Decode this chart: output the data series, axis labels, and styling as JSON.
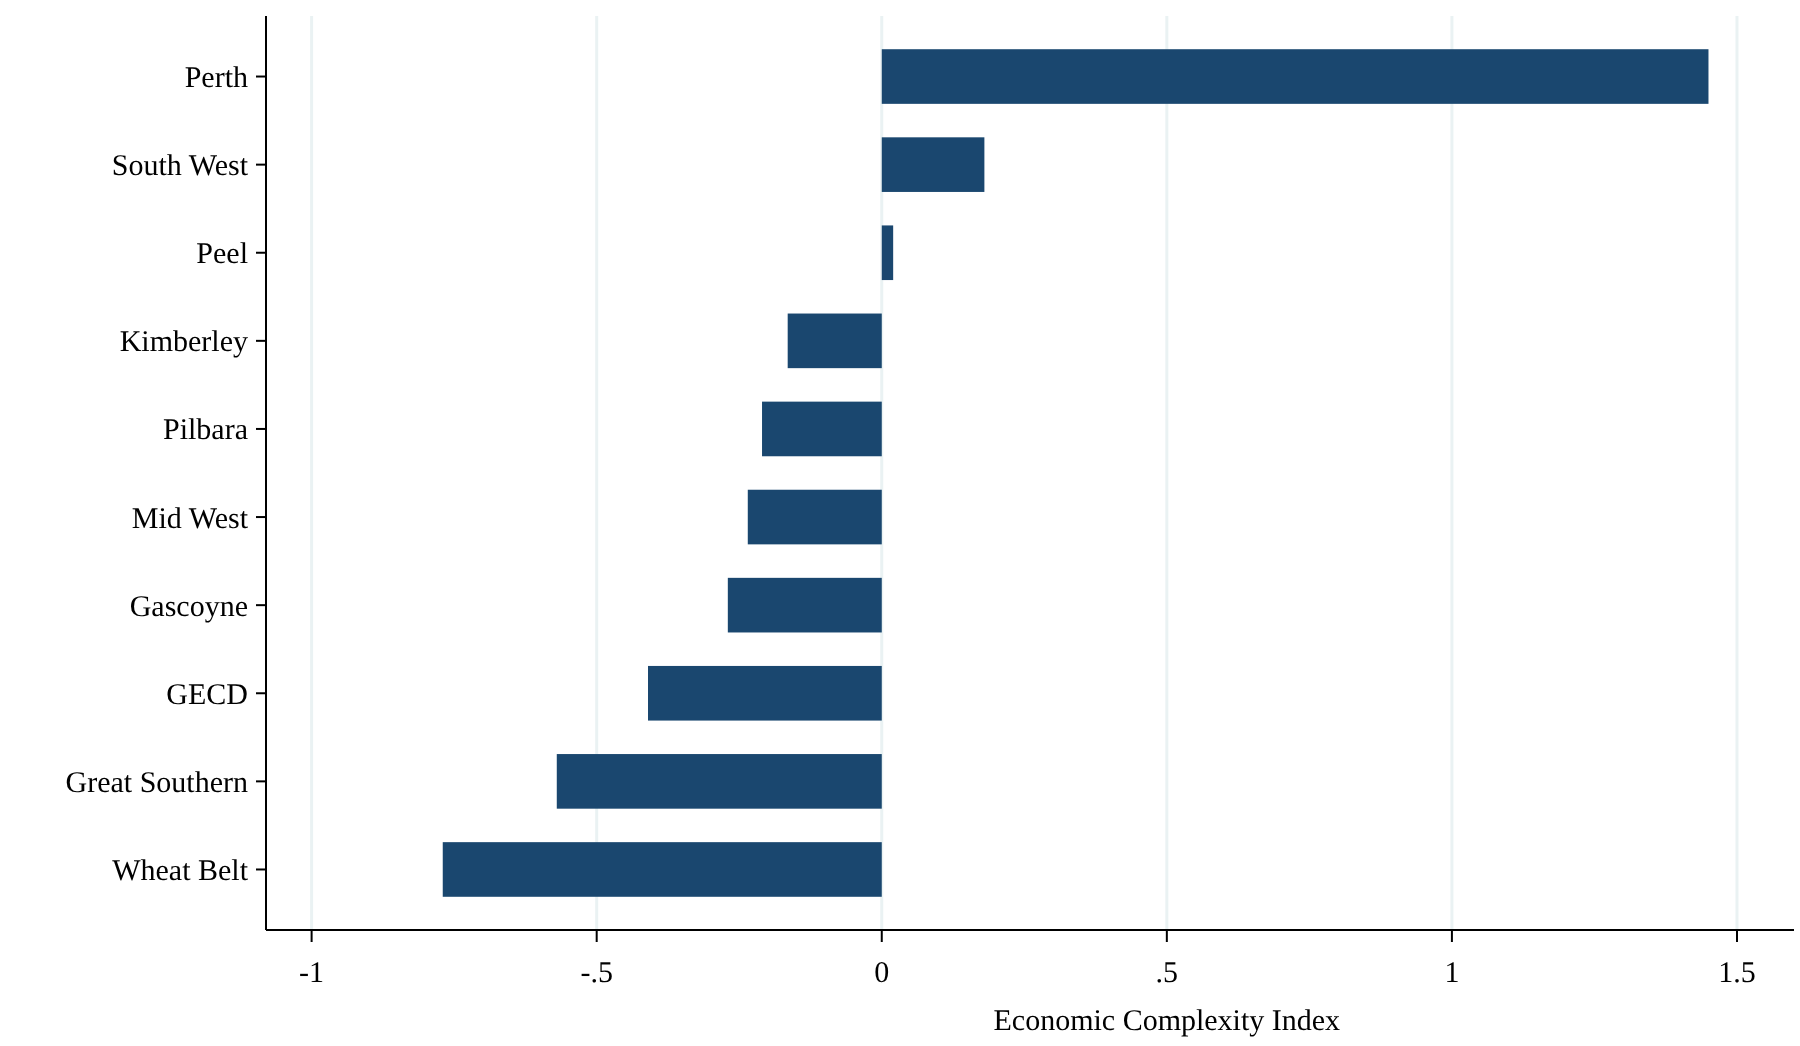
{
  "chart_data": {
    "type": "bar",
    "orientation": "horizontal",
    "xlabel": "Economic Complexity Index",
    "categories": [
      "Perth",
      "South West",
      "Peel",
      "Kimberley",
      "Pilbara",
      "Mid West",
      "Gascoyne",
      "GECD",
      "Great Southern",
      "Wheat Belt"
    ],
    "values": [
      1.45,
      0.18,
      0.02,
      -0.165,
      -0.21,
      -0.235,
      -0.27,
      -0.41,
      -0.57,
      -0.77
    ],
    "color": "#1a476f",
    "xlim": [
      -1.08,
      1.6
    ],
    "xticks": [
      {
        "value": -1,
        "label": "-1"
      },
      {
        "value": -0.5,
        "label": "-.5"
      },
      0,
      {
        "value": 0.5,
        "label": ".5"
      },
      1,
      1.5
    ],
    "grid": "x"
  }
}
